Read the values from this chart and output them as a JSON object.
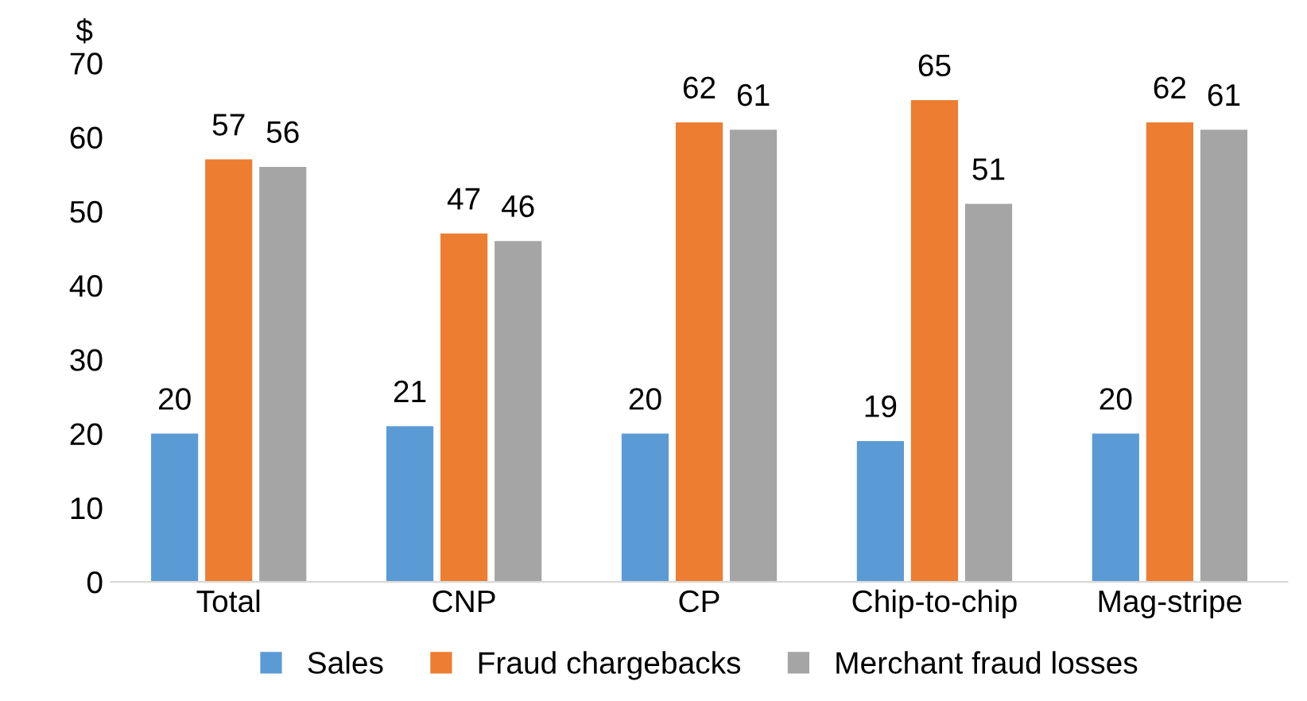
{
  "chart_data": {
    "type": "bar",
    "ylabel": "$",
    "categories": [
      "Total",
      "CNP",
      "CP",
      "Chip-to-chip",
      "Mag-stripe"
    ],
    "series": [
      {
        "name": "Sales",
        "color": "#5b9bd5",
        "values": [
          20,
          21,
          20,
          19,
          20
        ]
      },
      {
        "name": "Fraud chargebacks",
        "color": "#ed7d31",
        "values": [
          57,
          47,
          62,
          65,
          62
        ]
      },
      {
        "name": "Merchant fraud losses",
        "color": "#a5a5a5",
        "values": [
          56,
          46,
          61,
          51,
          61
        ]
      }
    ],
    "ylim": [
      0,
      70
    ],
    "yticks": [
      0,
      10,
      20,
      30,
      40,
      50,
      60,
      70
    ],
    "data_labels": true,
    "legend": "bottom",
    "grid": false
  }
}
